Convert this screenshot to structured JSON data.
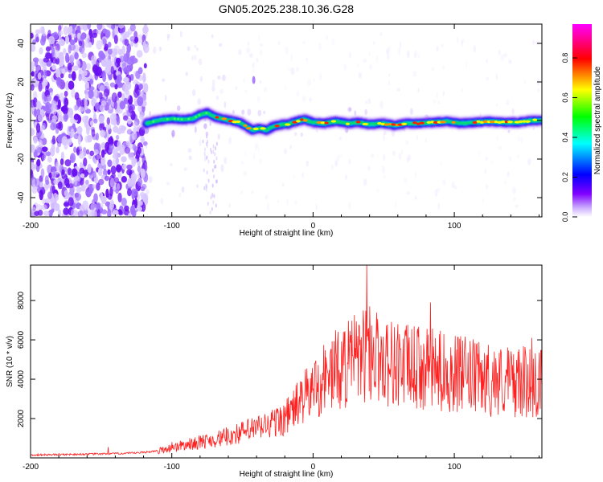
{
  "figure": {
    "title": "GN05.2025.238.10.36.G28"
  },
  "chart_data": [
    {
      "type": "heatmap",
      "title": "GN05.2025.238.10.36.G28",
      "xlabel": "Height of straight line (km)",
      "ylabel": "Frequency (Hz)",
      "xlim": [
        -200,
        162
      ],
      "ylim": [
        -50,
        50
      ],
      "x_ticks": [
        -200,
        -100,
        0,
        100
      ],
      "x_tick_labels": [
        "-200",
        "-100",
        "0",
        "100"
      ],
      "y_ticks": [
        -40,
        -20,
        0,
        20,
        40
      ],
      "y_tick_labels": [
        "-40",
        "-20",
        "0",
        "20",
        "40"
      ],
      "colorbar": {
        "label": "Normalized spectral amplitude",
        "range": [
          0,
          0.97
        ],
        "ticks": [
          0.0,
          0.2,
          0.4,
          0.6,
          0.8
        ],
        "tick_labels": [
          "0.0",
          "0.2",
          "0.4",
          "0.6",
          "0.8"
        ],
        "colormap": [
          "#ffffff",
          "#8000ff",
          "#0000ff",
          "#00ffff",
          "#00ff00",
          "#ffff00",
          "#ff0000",
          "#ff00ff"
        ]
      },
      "ridge": {
        "x": [
          -118,
          -110,
          -100,
          -92,
          -85,
          -80,
          -75,
          -70,
          -65,
          -58,
          -52,
          -47,
          -43,
          -38,
          -33,
          -28,
          -22,
          -18,
          -12,
          -6,
          0,
          8,
          16,
          25,
          32,
          40,
          50,
          58,
          66,
          75,
          85,
          95,
          105,
          115,
          125,
          135,
          145,
          155,
          162
        ],
        "y": [
          -1.5,
          0,
          1,
          0.5,
          1,
          3,
          4,
          2,
          1,
          0,
          -1,
          -3,
          -5,
          -4,
          -5,
          -3,
          -2,
          -2,
          -0.5,
          0.5,
          -1,
          -1.5,
          -0.5,
          -1.5,
          -1,
          -2,
          -1.5,
          -2.5,
          -1.5,
          -1.5,
          -1,
          -0.5,
          -1.5,
          -1,
          -0.5,
          -1,
          -1,
          0,
          0
        ]
      },
      "noise_region_x": [
        -200,
        -118
      ]
    },
    {
      "type": "line",
      "xlabel": "Height of straight line (km)",
      "ylabel": "SNR (10 * v/v)",
      "xlim": [
        -200,
        162
      ],
      "ylim": [
        0,
        9800
      ],
      "x_ticks": [
        -200,
        -100,
        0,
        100
      ],
      "x_tick_labels": [
        "-200",
        "-100",
        "0",
        "100"
      ],
      "y_ticks": [
        2000,
        4000,
        6000,
        8000
      ],
      "y_tick_labels": [
        "2000",
        "4000",
        "6000",
        "8000"
      ],
      "series": [
        {
          "color": "#ff2020",
          "envelope_x": [
            -200,
            -150,
            -125,
            -110,
            -95,
            -80,
            -65,
            -50,
            -35,
            -20,
            -10,
            0,
            10,
            20,
            30,
            40,
            50,
            60,
            80,
            100,
            120,
            140,
            162
          ],
          "envelope_y": [
            150,
            200,
            250,
            350,
            600,
            800,
            1000,
            1300,
            1600,
            2000,
            2800,
            3500,
            4200,
            4600,
            5000,
            5300,
            5000,
            4700,
            4500,
            4300,
            4000,
            3900,
            3800
          ],
          "peaks": [
            [
              38,
              9800
            ],
            [
              83,
              7900
            ],
            [
              40,
              7700
            ],
            [
              60,
              6800
            ],
            [
              155,
              6100
            ],
            [
              28,
              5200
            ],
            [
              -12,
              3700
            ],
            [
              -25,
              2500
            ],
            [
              -60,
              1300
            ],
            [
              -100,
              800
            ],
            [
              -145,
              550
            ]
          ]
        }
      ]
    }
  ]
}
